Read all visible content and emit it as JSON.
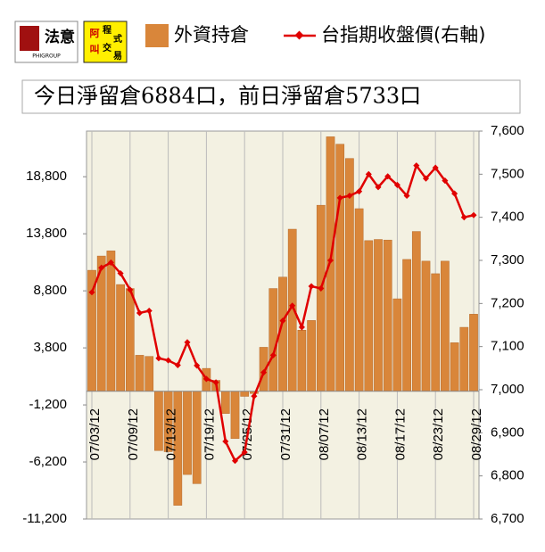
{
  "logos": {
    "brand": "法意",
    "brand_en": "PHIGROUP",
    "chars": [
      "阿",
      "叫",
      "程",
      "式",
      "交",
      "易"
    ]
  },
  "chart_data": {
    "type": "bar-line",
    "annotation": "今日淨留倉6884口，前日淨留倉5733口",
    "categories": [
      "07/03/12",
      null,
      null,
      null,
      "07/09/12",
      null,
      null,
      null,
      "07/13/12",
      null,
      null,
      null,
      "07/19/12",
      null,
      null,
      null,
      "07/25/12",
      null,
      null,
      null,
      "07/31/12",
      null,
      null,
      null,
      "08/07/12",
      null,
      null,
      null,
      "08/13/12",
      null,
      null,
      null,
      "08/17/12",
      null,
      null,
      null,
      "08/23/12",
      null,
      null,
      null,
      "08/29/12"
    ],
    "series": [
      {
        "name": "外資持倉",
        "color": "#d9863a",
        "kind": "bar",
        "axis": "y",
        "values": [
          10600,
          11850,
          12300,
          9350,
          9000,
          3150,
          3050,
          -5200,
          -5300,
          -10000,
          -7300,
          -8100,
          2000,
          950,
          -1950,
          -4150,
          -450,
          -200,
          3850,
          9000,
          10000,
          14200,
          5350,
          6200,
          16300,
          22300,
          21650,
          20400,
          16000,
          13200,
          13300,
          13250,
          8100,
          11550,
          14000,
          11400,
          10300,
          11400,
          4250,
          5600,
          6750
        ]
      },
      {
        "name": "台指期收盤價(右軸)",
        "color": "#e00000",
        "kind": "line",
        "axis": "y2",
        "values": [
          7226,
          7283,
          7295,
          7270,
          7232,
          7178,
          7183,
          7073,
          7068,
          7057,
          7110,
          7056,
          7025,
          7017,
          6880,
          6835,
          6855,
          6985,
          7040,
          7080,
          7160,
          7195,
          7145,
          7240,
          7235,
          7300,
          7445,
          7450,
          7460,
          7500,
          7470,
          7495,
          7475,
          7450,
          7520,
          7490,
          7515,
          7485,
          7455,
          7400,
          7405
        ]
      }
    ],
    "ylim": [
      -11200,
      22800
    ],
    "yticks": [
      {
        "value": -11200,
        "label": "-11,200"
      },
      {
        "value": -6200,
        "label": "-6,200"
      },
      {
        "value": -1200,
        "label": "-1,200"
      },
      {
        "value": 3800,
        "label": "3,800"
      },
      {
        "value": 8800,
        "label": "8,800"
      },
      {
        "value": 13800,
        "label": "13,800"
      },
      {
        "value": 18800,
        "label": "18,800"
      }
    ],
    "y2lim": [
      6700,
      7600
    ],
    "y2ticks": [
      {
        "value": 6700,
        "label": "6,700"
      },
      {
        "value": 6800,
        "label": "6,800"
      },
      {
        "value": 6900,
        "label": "6,900"
      },
      {
        "value": 7000,
        "label": "7,000"
      },
      {
        "value": 7100,
        "label": "7,100"
      },
      {
        "value": 7200,
        "label": "7,200"
      },
      {
        "value": 7300,
        "label": "7,300"
      },
      {
        "value": 7400,
        "label": "7,400"
      },
      {
        "value": 7500,
        "label": "7,500"
      },
      {
        "value": 7600,
        "label": "7,600"
      }
    ],
    "grid": true
  }
}
